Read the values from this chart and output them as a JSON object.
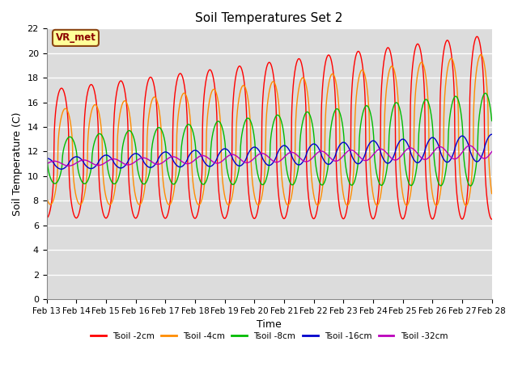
{
  "title": "Soil Temperatures Set 2",
  "xlabel": "Time",
  "ylabel": "Soil Temperature (C)",
  "ylim": [
    0,
    22
  ],
  "xlim": [
    0,
    15
  ],
  "annotation": "VR_met",
  "plot_bg": "#dcdcdc",
  "grid_color": "#ffffff",
  "x_tick_labels": [
    "Feb 13",
    "Feb 14",
    "Feb 15",
    "Feb 16",
    "Feb 17",
    "Feb 18",
    "Feb 19",
    "Feb 20",
    "Feb 21",
    "Feb 22",
    "Feb 23",
    "Feb 24",
    "Feb 25",
    "Feb 26",
    "Feb 27",
    "Feb 28"
  ],
  "series": [
    {
      "label": "Tsoil -2cm",
      "color": "#ff0000",
      "amp_start": 5.2,
      "amp_end": 7.5,
      "mean_start": 11.8,
      "mean_end": 14.0,
      "phase_shift": 0.0,
      "sharpness": 2.5
    },
    {
      "label": "Tsoil -4cm",
      "color": "#ff8c00",
      "amp_start": 3.8,
      "amp_end": 6.2,
      "mean_start": 11.5,
      "mean_end": 13.8,
      "phase_shift": 0.13,
      "sharpness": 2.2
    },
    {
      "label": "Tsoil -8cm",
      "color": "#00bb00",
      "amp_start": 1.8,
      "amp_end": 3.8,
      "mean_start": 11.2,
      "mean_end": 13.0,
      "phase_shift": 0.28,
      "sharpness": 1.8
    },
    {
      "label": "Tsoil -16cm",
      "color": "#0000cc",
      "amp_start": 0.45,
      "amp_end": 1.1,
      "mean_start": 11.0,
      "mean_end": 12.3,
      "phase_shift": 0.5,
      "sharpness": 1.2
    },
    {
      "label": "Tsoil -32cm",
      "color": "#bb00bb",
      "amp_start": 0.2,
      "amp_end": 0.55,
      "mean_start": 11.0,
      "mean_end": 12.0,
      "phase_shift": 0.75,
      "sharpness": 1.0
    }
  ]
}
